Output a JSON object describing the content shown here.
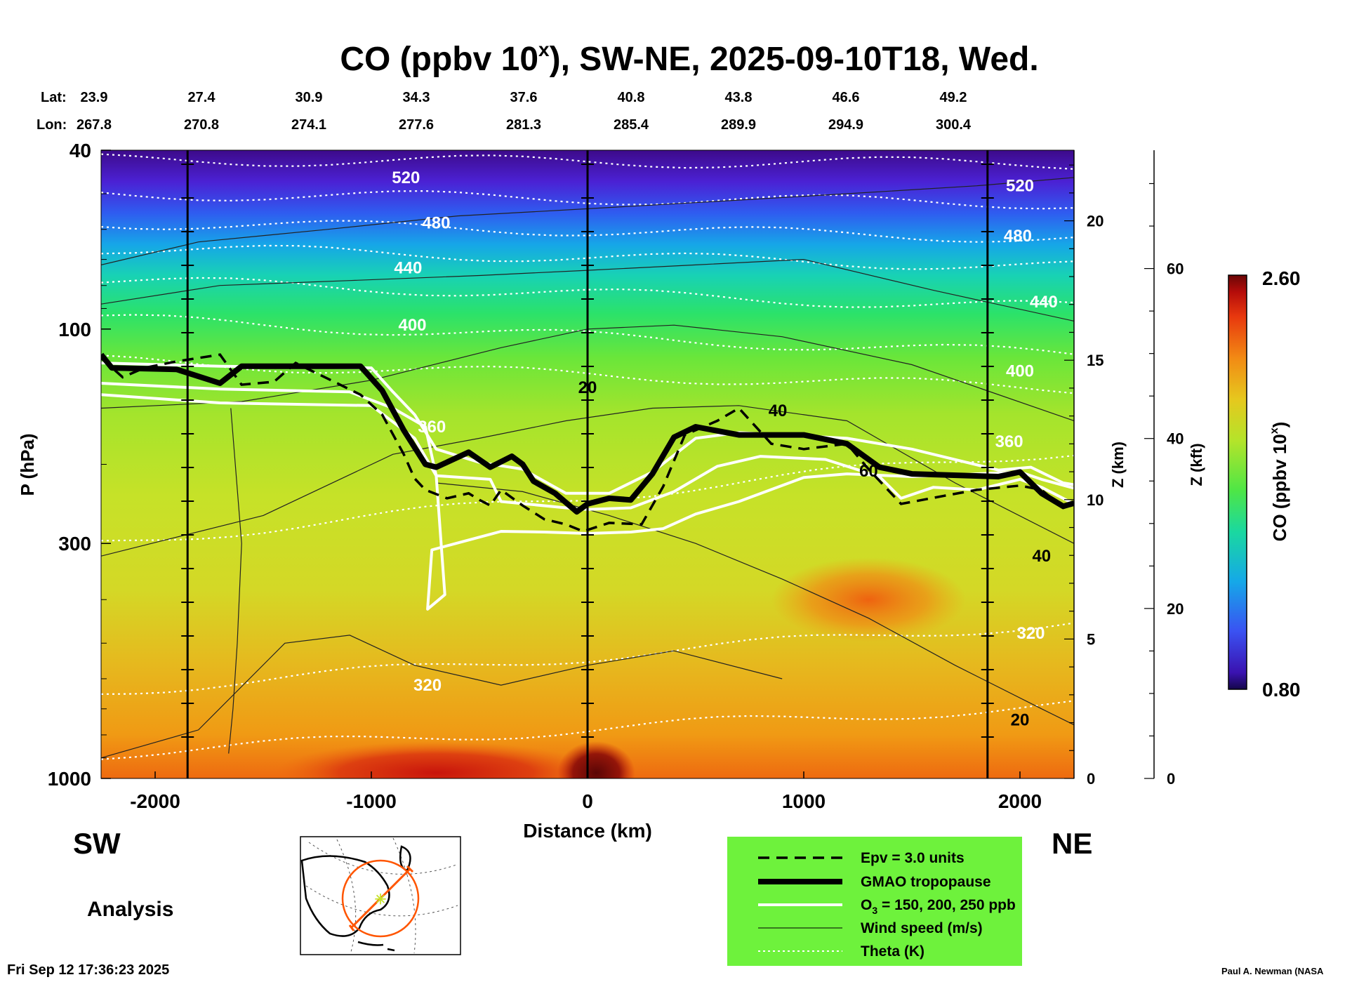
{
  "title": {
    "main": "CO (ppbv 10",
    "sup": "x",
    "rest": "), SW-NE, 2025-09-10T18, Wed."
  },
  "coords": {
    "lat_label": "Lat:",
    "lon_label": "Lon:",
    "lat": [
      "23.9",
      "27.4",
      "30.9",
      "34.3",
      "37.6",
      "40.8",
      "43.8",
      "46.6",
      "49.2"
    ],
    "lon": [
      "267.8",
      "270.8",
      "274.1",
      "277.6",
      "281.3",
      "285.4",
      "289.9",
      "294.9",
      "300.4"
    ]
  },
  "direction": {
    "left": "SW",
    "right": "NE"
  },
  "analysis_label": "Analysis",
  "timestamp": "Fri Sep 12 17:36:23 2025",
  "credit": "Paul A. Newman (NASA",
  "legend": [
    {
      "label": "Epv = 3.0 units",
      "style": "dashed"
    },
    {
      "label": "GMAO tropopause",
      "style": "thick"
    },
    {
      "label": "O",
      "sub": "3",
      "label_rest": " = 150, 200, 250 ppb",
      "style": "white"
    },
    {
      "label": "Wind speed (m/s)",
      "style": "thin"
    },
    {
      "label": "Theta (K)",
      "style": "dotted"
    }
  ],
  "colorbar": {
    "title": "CO (ppbv 10",
    "sup": "x",
    "title_end": ")",
    "max": "2.60",
    "min": "0.80"
  },
  "colors": {
    "legend_bg": "#6ef23c",
    "track": "#ff5500"
  },
  "chart_data": {
    "type": "heatmap",
    "xlabel": "Distance (km)",
    "ylabel": "P (hPa)",
    "xlim": [
      -2250,
      2250
    ],
    "ylim": [
      1000,
      40
    ],
    "yscale": "log",
    "x_ticks": [
      "-2000",
      "-1000",
      "0",
      "1000",
      "2000"
    ],
    "y_ticks": [
      "40",
      "100",
      "300",
      "1000"
    ],
    "z_axis": {
      "label": "Z (km)",
      "ticks": [
        "0",
        "5",
        "10",
        "15",
        "20"
      ]
    },
    "kft_axis": {
      "label": "Z (kft)",
      "ticks": [
        "0",
        "20",
        "40",
        "60"
      ]
    },
    "colorbar_range": [
      0.8,
      2.6
    ],
    "theta_levels": [
      320,
      360,
      400,
      440,
      480,
      520
    ],
    "theta_labels": [
      {
        "text": "520",
        "x": -840,
        "p": 46
      },
      {
        "text": "480",
        "x": -700,
        "p": 58
      },
      {
        "text": "440",
        "x": -830,
        "p": 73
      },
      {
        "text": "400",
        "x": -810,
        "p": 98
      },
      {
        "text": "360",
        "x": -720,
        "p": 165
      },
      {
        "text": "320",
        "x": -740,
        "p": 620
      },
      {
        "text": "520",
        "x": 2000,
        "p": 48
      },
      {
        "text": "480",
        "x": 1990,
        "p": 62
      },
      {
        "text": "440",
        "x": 2110,
        "p": 87
      },
      {
        "text": "400",
        "x": 2000,
        "p": 124
      },
      {
        "text": "360",
        "x": 1950,
        "p": 178
      },
      {
        "text": "320",
        "x": 2050,
        "p": 475
      }
    ],
    "wind_labels": [
      {
        "text": "20",
        "x": 0,
        "p": 135
      },
      {
        "text": "40",
        "x": 880,
        "p": 152
      },
      {
        "text": "60",
        "x": 1300,
        "p": 207
      },
      {
        "text": "40",
        "x": 2100,
        "p": 320
      },
      {
        "text": "20",
        "x": 2000,
        "p": 740
      }
    ],
    "tropopause": {
      "x": [
        -2250,
        -2200,
        -1900,
        -1700,
        -1600,
        -1050,
        -950,
        -850,
        -750,
        -700,
        -550,
        -450,
        -350,
        -300,
        -250,
        -150,
        -50,
        0,
        100,
        200,
        300,
        400,
        500,
        700,
        1000,
        1200,
        1350,
        1500,
        1900,
        2000,
        2100,
        2200,
        2250
      ],
      "p": [
        114,
        122,
        123,
        132,
        121,
        121,
        137,
        168,
        200,
        203,
        188,
        203,
        192,
        200,
        218,
        232,
        255,
        245,
        238,
        240,
        210,
        174,
        165,
        172,
        172,
        180,
        203,
        210,
        213,
        208,
        232,
        248,
        244
      ]
    },
    "epv_line": {
      "x": [
        -2250,
        -2150,
        -2050,
        -1900,
        -1700,
        -1600,
        -1450,
        -1350,
        -1050,
        -950,
        -850,
        -800,
        -750,
        -650,
        -550,
        -500,
        -450,
        -400,
        -300,
        -200,
        -100,
        -20,
        100,
        250,
        350,
        450,
        600,
        700,
        850,
        1000,
        1200,
        1300,
        1450,
        1650,
        1800,
        2000,
        2100,
        2200,
        2250
      ],
      "p": [
        116,
        128,
        122,
        118,
        114,
        133,
        131,
        119,
        140,
        155,
        190,
        215,
        228,
        238,
        232,
        240,
        247,
        228,
        247,
        265,
        272,
        282,
        270,
        272,
        224,
        172,
        160,
        150,
        180,
        185,
        180,
        205,
        245,
        235,
        228,
        223,
        228,
        250,
        245
      ]
    },
    "o3_contours": [
      {
        "x": [
          -2250,
          -1700,
          -1000,
          -900,
          -800,
          -700,
          -500,
          -300,
          -100,
          100,
          300,
          500,
          700,
          900,
          1200,
          1500,
          1900,
          2050,
          2200,
          2250
        ],
        "p": [
          119,
          121,
          122,
          138,
          155,
          185,
          198,
          205,
          232,
          232,
          208,
          175,
          170,
          172,
          175,
          185,
          206,
          203,
          220,
          222
        ]
      },
      {
        "x": [
          -2250,
          -1700,
          -1100,
          -900,
          -750,
          -700,
          -450,
          -400,
          -100,
          0,
          200,
          400,
          600,
          800,
          1100,
          1350,
          1450,
          1600,
          1800,
          2000,
          2100,
          2250
        ],
        "p": [
          132,
          136,
          138,
          150,
          165,
          212,
          216,
          242,
          250,
          252,
          250,
          230,
          202,
          192,
          195,
          213,
          238,
          225,
          228,
          216,
          225,
          245
        ]
      },
      {
        "x": [
          -2250,
          -1700,
          -1000,
          -800,
          -700,
          -660,
          -740,
          -720,
          -400,
          -200,
          0,
          200,
          350,
          500,
          700,
          1000,
          1200,
          1500,
          1800,
          2000,
          2100,
          2250
        ],
        "p": [
          140,
          146,
          148,
          175,
          212,
          390,
          420,
          310,
          282,
          283,
          285,
          283,
          278,
          258,
          242,
          214,
          210,
          213,
          210,
          208,
          216,
          226
        ]
      }
    ],
    "hot_spots": [
      {
        "x": -700,
        "p": 1000,
        "span": 750,
        "level": "high"
      },
      {
        "x": 40,
        "p": 1000,
        "span": 180,
        "level": "max"
      },
      {
        "x": 1300,
        "p": 400,
        "span": 450,
        "level": "mid"
      }
    ]
  }
}
